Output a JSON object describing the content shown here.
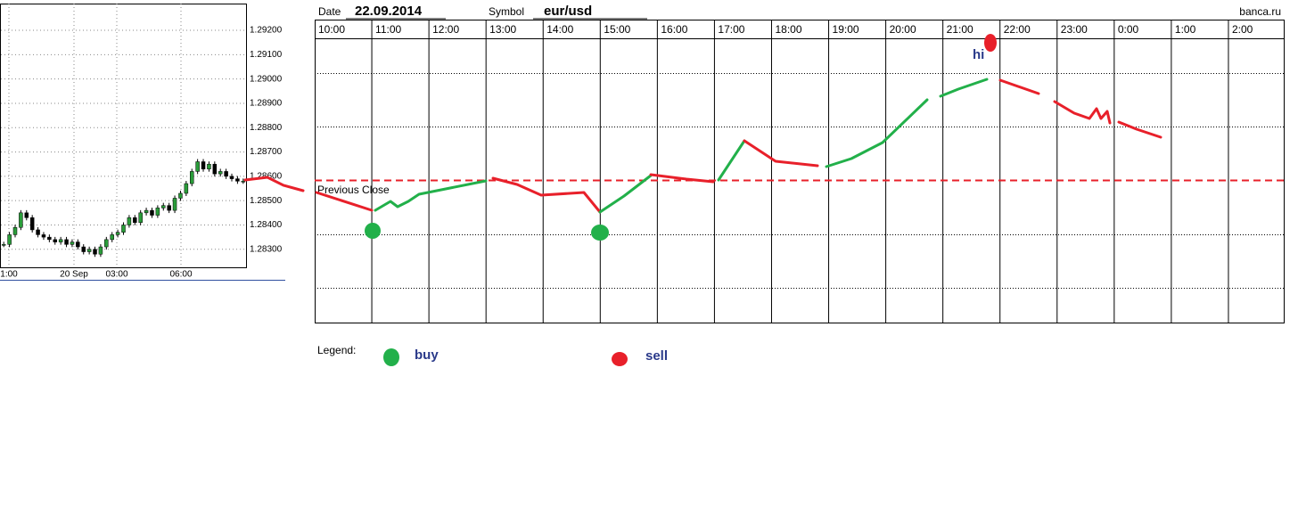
{
  "mini_chart": {
    "yticks": [
      {
        "value": 1.292,
        "label": "1.29200"
      },
      {
        "value": 1.291,
        "label": "1.29100"
      },
      {
        "value": 1.29,
        "label": "1.29000"
      },
      {
        "value": 1.289,
        "label": "1.28900"
      },
      {
        "value": 1.288,
        "label": "1.28800"
      },
      {
        "value": 1.287,
        "label": "1.28700"
      },
      {
        "value": 1.286,
        "label": "1.28600"
      },
      {
        "value": 1.285,
        "label": "1.28500"
      },
      {
        "value": 1.284,
        "label": "1.28400"
      },
      {
        "value": 1.283,
        "label": "1.28300"
      }
    ],
    "ylim": [
      1.28226,
      1.2931
    ],
    "xlabels": [
      "1:00",
      "20 Sep",
      "03:00",
      "06:00"
    ],
    "closes": [
      1.2832,
      1.2836,
      1.2839,
      1.2845,
      1.2843,
      1.2838,
      1.2836,
      1.2835,
      1.2834,
      1.2833,
      1.2834,
      1.2832,
      1.2833,
      1.2831,
      1.2829,
      1.283,
      1.2828,
      1.2831,
      1.2834,
      1.2836,
      1.2837,
      1.284,
      1.2843,
      1.2841,
      1.2845,
      1.2846,
      1.2844,
      1.2847,
      1.2848,
      1.2846,
      1.2851,
      1.2853,
      1.2857,
      1.2862,
      1.2866,
      1.2863,
      1.2865,
      1.2861,
      1.2862,
      1.286,
      1.2859,
      1.2858,
      1.2858
    ]
  },
  "header": {
    "date_label": "Date",
    "date": "22.09.2014",
    "symbol_label": "Symbol",
    "symbol": "eur/usd",
    "site": "banca.ru"
  },
  "hours": [
    "10:00",
    "11:00",
    "12:00",
    "13:00",
    "14:00",
    "15:00",
    "16:00",
    "17:00",
    "18:00",
    "19:00",
    "20:00",
    "21:00",
    "22:00",
    "23:00",
    "0:00",
    "1:00",
    "2:00"
  ],
  "annotations": {
    "previous_close": "Previous Close",
    "hi": "hi"
  },
  "legend": {
    "title": "Legend:",
    "buy": "buy",
    "sell": "sell"
  }
}
